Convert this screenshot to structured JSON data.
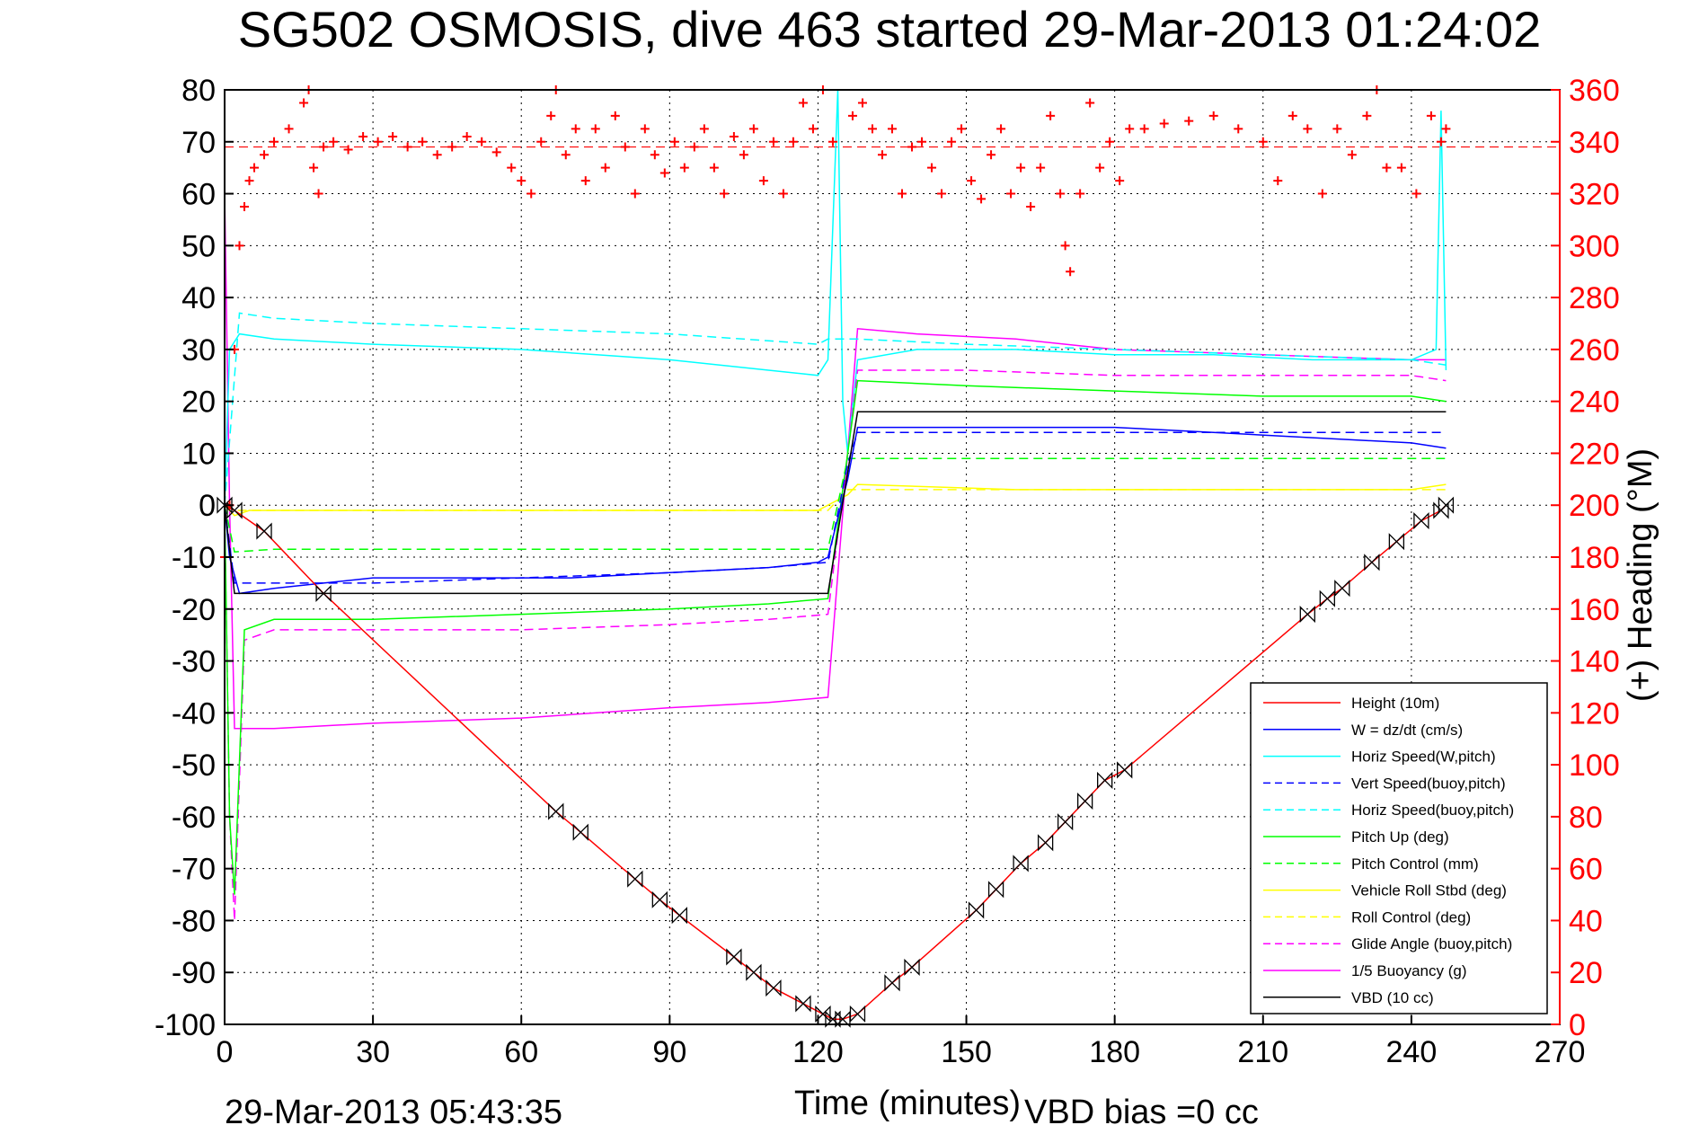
{
  "chart_data": {
    "type": "line",
    "title": "SG502 OSMOSIS, dive 463 started 29-Mar-2013 01:24:02",
    "xlabel": "Time (minutes)",
    "ylabel_right": "(+) Heading (°M)",
    "footer_date": "29-Mar-2013 05:43:35",
    "footer_note": "VBD bias =0 cc",
    "xlim": [
      0,
      270
    ],
    "ylim_left": [
      -100,
      80
    ],
    "ylim_right": [
      0,
      360
    ],
    "x_ticks": [
      "0",
      "30",
      "60",
      "90",
      "120",
      "150",
      "180",
      "210",
      "240",
      "270"
    ],
    "y_ticks_left": [
      "80",
      "70",
      "60",
      "50",
      "40",
      "30",
      "20",
      "10",
      "0",
      "-10",
      "-20",
      "-30",
      "-40",
      "-50",
      "-60",
      "-70",
      "-80",
      "-90",
      "-100"
    ],
    "y_ticks_right": [
      "360",
      "340",
      "320",
      "300",
      "280",
      "260",
      "240",
      "220",
      "200",
      "180",
      "160",
      "140",
      "120",
      "100",
      "80",
      "60",
      "40",
      "20",
      "0"
    ],
    "grid": true,
    "legend_position": "bottom-right",
    "heading_reference": 338,
    "series": [
      {
        "name": "Height (10m)",
        "color": "#ff0000",
        "style": "solid",
        "x": [
          0,
          2,
          8,
          20,
          67,
          72,
          83,
          88,
          92,
          103,
          107,
          111,
          117,
          121,
          123,
          125,
          128,
          135,
          139,
          152,
          156,
          161,
          166,
          170,
          174,
          178,
          182,
          219,
          223,
          226,
          232,
          237,
          242,
          246,
          247
        ],
        "y": [
          0,
          -1,
          -5,
          -17,
          -59,
          -63,
          -72,
          -76,
          -79,
          -87,
          -90,
          -93,
          -96,
          -98,
          -99,
          -99,
          -98,
          -92,
          -89,
          -78,
          -74,
          -69,
          -65,
          -61,
          -57,
          -53,
          -51,
          -21,
          -18,
          -16,
          -11,
          -7,
          -3,
          -1,
          0
        ]
      },
      {
        "name": "W = dz/dt (cm/s)",
        "color": "#0000ff",
        "style": "solid",
        "x": [
          0,
          1,
          3,
          10,
          20,
          30,
          50,
          70,
          90,
          110,
          120,
          122,
          126,
          128,
          140,
          160,
          180,
          200,
          220,
          240,
          247
        ],
        "y": [
          0,
          -10,
          -17,
          -16,
          -15,
          -14,
          -14,
          -14,
          -13,
          -12,
          -11,
          -10,
          5,
          15,
          15,
          15,
          15,
          14,
          13,
          12,
          11
        ]
      },
      {
        "name": "Horiz Speed(W,pitch)",
        "color": "#00ffff",
        "style": "solid",
        "x": [
          0,
          1,
          3,
          10,
          30,
          60,
          90,
          110,
          120,
          122,
          124,
          125,
          126,
          128,
          140,
          160,
          180,
          200,
          220,
          240,
          245,
          246,
          247
        ],
        "y": [
          0,
          30,
          33,
          32,
          31,
          30,
          28,
          26,
          25,
          28,
          80,
          20,
          10,
          28,
          30,
          30,
          29,
          29,
          28,
          28,
          30,
          76,
          26
        ]
      },
      {
        "name": "Vert Speed(buoy,pitch)",
        "color": "#0000ff",
        "style": "dashed",
        "x": [
          0,
          2,
          10,
          30,
          60,
          90,
          110,
          122,
          126,
          128,
          150,
          180,
          210,
          240,
          247
        ],
        "y": [
          0,
          -15,
          -15,
          -15,
          -14,
          -13,
          -12,
          -11,
          8,
          14,
          14,
          14,
          14,
          14,
          14
        ]
      },
      {
        "name": "Horiz Speed(buoy,pitch)",
        "color": "#00ffff",
        "style": "dashed",
        "x": [
          0,
          3,
          10,
          30,
          60,
          90,
          120,
          122,
          128,
          150,
          180,
          210,
          240,
          247
        ],
        "y": [
          0,
          37,
          36,
          35,
          34,
          33,
          31,
          32,
          32,
          31,
          30,
          29,
          28,
          27
        ]
      },
      {
        "name": "Pitch Up (deg)",
        "color": "#00ff00",
        "style": "solid",
        "x": [
          0,
          1,
          2,
          4,
          10,
          30,
          60,
          90,
          110,
          122,
          126,
          128,
          150,
          180,
          210,
          240,
          247
        ],
        "y": [
          0,
          -60,
          -75,
          -24,
          -22,
          -22,
          -21,
          -20,
          -19,
          -18,
          10,
          24,
          23,
          22,
          21,
          21,
          20
        ]
      },
      {
        "name": "Pitch Control (mm)",
        "color": "#00ff00",
        "style": "dashed",
        "x": [
          0,
          2,
          10,
          122,
          126,
          128,
          247
        ],
        "y": [
          0,
          -9,
          -8.5,
          -8.5,
          9,
          9,
          9
        ]
      },
      {
        "name": "Vehicle Roll Stbd (deg)",
        "color": "#ffff00",
        "style": "solid",
        "x": [
          0,
          2,
          5,
          30,
          60,
          90,
          120,
          122,
          126,
          128,
          160,
          200,
          240,
          247
        ],
        "y": [
          0,
          -2,
          -1,
          -1,
          -1,
          -1,
          -1,
          0,
          2,
          4,
          3,
          3,
          3,
          4
        ]
      },
      {
        "name": "Roll Control (deg)",
        "color": "#ffff00",
        "style": "dashed",
        "x": [
          0,
          2,
          10,
          122,
          126,
          128,
          247
        ],
        "y": [
          0,
          -1,
          -1,
          -1,
          3,
          3,
          3
        ]
      },
      {
        "name": "Glide Angle (buoy,pitch)",
        "color": "#ff00ff",
        "style": "dashed",
        "x": [
          0,
          1,
          2,
          4,
          10,
          30,
          60,
          90,
          110,
          122,
          126,
          128,
          150,
          180,
          210,
          240,
          247
        ],
        "y": [
          0,
          -60,
          -80,
          -26,
          -24,
          -24,
          -24,
          -23,
          -22,
          -21,
          10,
          26,
          26,
          25,
          25,
          25,
          24
        ]
      },
      {
        "name": "1/5 Buoyancy (g)",
        "color": "#ff00ff",
        "style": "solid",
        "x": [
          0,
          1,
          2,
          10,
          30,
          60,
          90,
          110,
          122,
          128,
          140,
          160,
          180,
          210,
          240,
          247
        ],
        "y": [
          60,
          0,
          -43,
          -43,
          -42,
          -41,
          -39,
          -38,
          -37,
          34,
          33,
          32,
          30,
          29,
          28,
          28
        ]
      },
      {
        "name": "VBD (10 cc)",
        "color": "#000000",
        "style": "solid",
        "x": [
          0,
          2,
          122,
          128,
          247
        ],
        "y": [
          0,
          -17,
          -17,
          18,
          18
        ]
      }
    ],
    "heading_series": {
      "color": "#ff0000",
      "marker": "+",
      "x": [
        0,
        1,
        2,
        3,
        4,
        5,
        6,
        8,
        10,
        13,
        16,
        17,
        18,
        19,
        20,
        22,
        25,
        28,
        31,
        34,
        37,
        40,
        43,
        46,
        49,
        52,
        55,
        58,
        60,
        62,
        64,
        66,
        67,
        69,
        71,
        73,
        75,
        77,
        79,
        81,
        83,
        85,
        87,
        89,
        91,
        93,
        95,
        97,
        99,
        101,
        103,
        105,
        107,
        109,
        111,
        113,
        115,
        117,
        119,
        121,
        123,
        127,
        129,
        131,
        133,
        135,
        137,
        139,
        141,
        143,
        145,
        147,
        149,
        151,
        153,
        155,
        157,
        159,
        161,
        163,
        165,
        167,
        169,
        170,
        171,
        173,
        175,
        177,
        179,
        181,
        183,
        186,
        190,
        195,
        200,
        205,
        210,
        213,
        216,
        219,
        222,
        225,
        228,
        231,
        233,
        235,
        238,
        241,
        244,
        246,
        247
      ],
      "y": [
        180,
        200,
        260,
        300,
        315,
        325,
        330,
        335,
        340,
        345,
        355,
        360,
        330,
        320,
        338,
        340,
        337,
        342,
        340,
        342,
        338,
        340,
        335,
        338,
        342,
        340,
        336,
        330,
        325,
        320,
        340,
        350,
        360,
        335,
        345,
        325,
        345,
        330,
        350,
        338,
        320,
        345,
        335,
        328,
        340,
        330,
        338,
        345,
        330,
        320,
        342,
        335,
        345,
        325,
        340,
        320,
        340,
        355,
        345,
        360,
        340,
        350,
        355,
        345,
        335,
        345,
        320,
        338,
        340,
        330,
        320,
        340,
        345,
        325,
        318,
        335,
        345,
        320,
        330,
        315,
        330,
        350,
        320,
        300,
        290,
        320,
        355,
        330,
        340,
        325,
        345,
        345,
        347,
        348,
        350,
        345,
        340,
        325,
        350,
        345,
        320,
        345,
        335,
        350,
        360,
        330,
        330,
        320,
        350,
        340,
        345
      ]
    },
    "legend": [
      {
        "label": "Height (10m)",
        "color": "#ff0000",
        "style": "solid"
      },
      {
        "label": "W = dz/dt (cm/s)",
        "color": "#0000ff",
        "style": "solid"
      },
      {
        "label": "Horiz Speed(W,pitch)",
        "color": "#00ffff",
        "style": "solid"
      },
      {
        "label": "Vert Speed(buoy,pitch)",
        "color": "#0000ff",
        "style": "dashed"
      },
      {
        "label": "Horiz Speed(buoy,pitch)",
        "color": "#00ffff",
        "style": "dashed"
      },
      {
        "label": "Pitch Up (deg)",
        "color": "#00ff00",
        "style": "solid"
      },
      {
        "label": "Pitch Control (mm)",
        "color": "#00ff00",
        "style": "dashed"
      },
      {
        "label": "Vehicle Roll Stbd (deg)",
        "color": "#ffff00",
        "style": "solid"
      },
      {
        "label": "Roll Control (deg)",
        "color": "#ffff00",
        "style": "dashed"
      },
      {
        "label": "Glide Angle (buoy,pitch)",
        "color": "#ff00ff",
        "style": "dashed"
      },
      {
        "label": "1/5 Buoyancy (g)",
        "color": "#ff00ff",
        "style": "solid"
      },
      {
        "label": "VBD (10 cc)",
        "color": "#000000",
        "style": "solid"
      }
    ]
  }
}
